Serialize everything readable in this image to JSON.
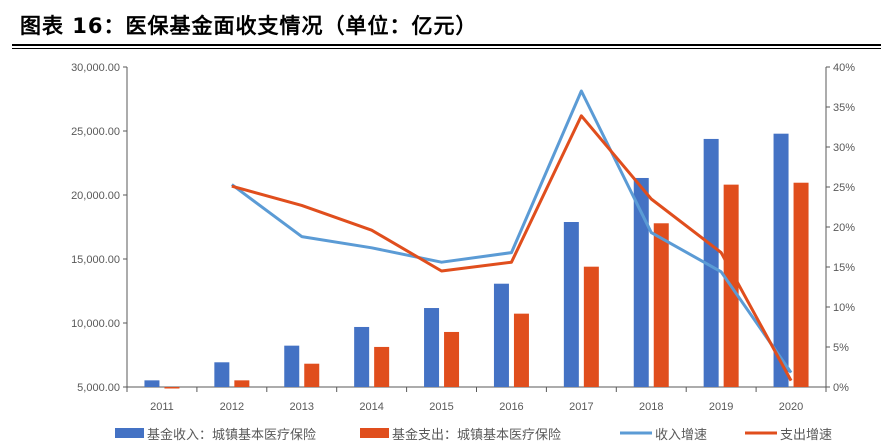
{
  "title": "图表 16：医保基金面收支情况（单位：亿元）",
  "chart_data": {
    "type": "bar+line",
    "title": "图表 16：医保基金面收支情况（单位：亿元）",
    "categories": [
      "2011",
      "2012",
      "2013",
      "2014",
      "2015",
      "2016",
      "2017",
      "2018",
      "2019",
      "2020"
    ],
    "y_left": {
      "min": 5000,
      "max": 30000,
      "ticks": [
        "5,000.00",
        "10,000.00",
        "15,000.00",
        "20,000.00",
        "25,000.00",
        "30,000.00"
      ]
    },
    "y_right": {
      "min": 0,
      "max": 40,
      "ticks": [
        "0%",
        "5%",
        "10%",
        "15%",
        "20%",
        "25%",
        "30%",
        "35%",
        "40%"
      ]
    },
    "series": [
      {
        "name": "基金收入：城镇基本医疗保险",
        "type": "bar",
        "axis": "left",
        "color": "#4472C4",
        "values": [
          5520,
          6930,
          8230,
          9690,
          11170,
          13070,
          17890,
          21330,
          24380,
          24790
        ]
      },
      {
        "name": "基金支出：城镇基本医疗保险",
        "type": "bar",
        "axis": "left",
        "color": "#E04E1D",
        "values": [
          4980,
          5520,
          6820,
          8130,
          9300,
          10730,
          14400,
          17790,
          20810,
          20960
        ]
      },
      {
        "name": "收入增速",
        "type": "line",
        "axis": "right",
        "color": "#5B9BD5",
        "values": [
          null,
          25.3,
          18.8,
          17.4,
          15.6,
          16.8,
          37.0,
          19.3,
          14.4,
          1.8
        ]
      },
      {
        "name": "支出增速",
        "type": "line",
        "axis": "right",
        "color": "#E04E1D",
        "values": [
          null,
          25.1,
          22.7,
          19.6,
          14.5,
          15.6,
          33.9,
          23.5,
          16.8,
          0.8
        ]
      }
    ],
    "legend": "bottom",
    "grid": false
  }
}
